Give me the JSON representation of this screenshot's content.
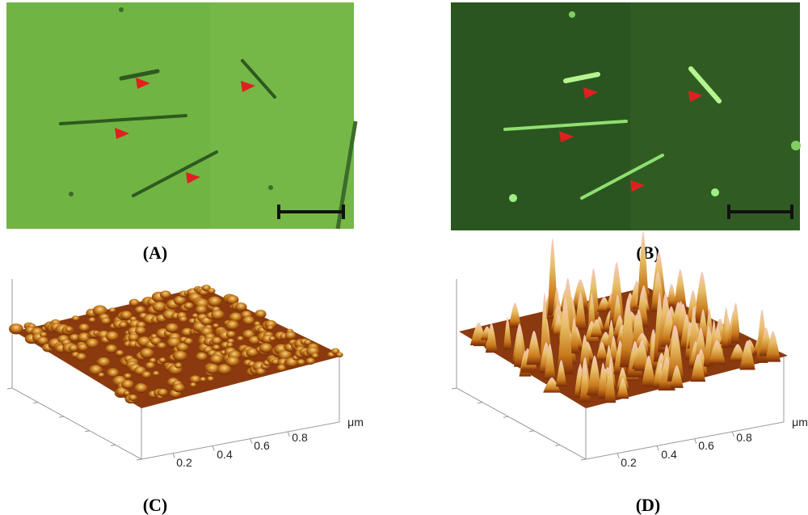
{
  "panels": [
    {
      "label": "(A)"
    },
    {
      "label": "(B)"
    },
    {
      "label": "(C)",
      "ticks": [
        0.2,
        0.4,
        0.6,
        0.8
      ],
      "unit": "μm"
    },
    {
      "label": "(D)",
      "ticks": [
        0.2,
        0.4,
        0.6,
        0.8
      ],
      "unit": "μm"
    }
  ]
}
